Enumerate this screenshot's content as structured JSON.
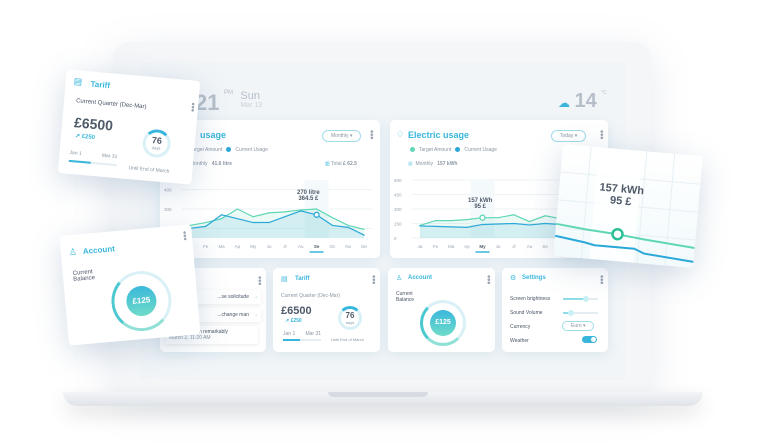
{
  "header": {
    "time": "21",
    "ampm": "PM",
    "day": "Sun",
    "date": "Mar 13",
    "temp": "14",
    "temp_unit": "°C",
    "weather_icon": "cloud-snow-icon"
  },
  "gas": {
    "title": "usage",
    "period": "Monthly",
    "legend_target": "Target Amount",
    "legend_current": "Current Usage",
    "monthly_label": "Monthly",
    "monthly_value": "41.6 litre",
    "total_label": "Total",
    "total_value": "£ 62.5",
    "tooltip_1": "270 litre",
    "tooltip_2": "364.5 £"
  },
  "electric": {
    "title": "Electric usage",
    "period": "Today",
    "legend_target": "Target Amount",
    "legend_current": "Current Usage",
    "monthly_label": "Monthly",
    "monthly_value": "157 kWh",
    "tooltip_1": "157 kWh",
    "tooltip_2": "95 £"
  },
  "chart_data": [
    {
      "type": "line",
      "title": "usage",
      "categories": [
        "Ja",
        "Fe",
        "Ma",
        "Ap",
        "My",
        "Ju",
        "Jl",
        "Au",
        "Se",
        "Oc",
        "No",
        "De"
      ],
      "ylim": [
        150,
        450
      ],
      "yticks": [
        200,
        300,
        400
      ],
      "highlight": "Se",
      "series": [
        {
          "name": "Target Amount",
          "color": "#5fd6b5",
          "values": [
            215,
            230,
            250,
            300,
            260,
            280,
            285,
            295,
            300,
            255,
            215,
            195
          ]
        },
        {
          "name": "Current Usage",
          "color": "#2ba8d8",
          "values": [
            200,
            210,
            270,
            250,
            230,
            230,
            260,
            290,
            270,
            215,
            205,
            165
          ]
        }
      ]
    },
    {
      "type": "line",
      "title": "Electric usage",
      "categories": [
        "Ja",
        "Fe",
        "Ma",
        "Ap",
        "My",
        "Ju",
        "Jl",
        "Au",
        "Se",
        "Oc",
        "No",
        "De"
      ],
      "ylim": [
        0,
        600
      ],
      "yticks": [
        0,
        150,
        300,
        450,
        600
      ],
      "highlight": "My",
      "series": [
        {
          "name": "Target Amount",
          "color": "#5fd6b5",
          "values": [
            130,
            180,
            180,
            190,
            210,
            210,
            240,
            170,
            230,
            200,
            200,
            210
          ]
        },
        {
          "name": "Current Usage",
          "color": "#2ba8d8",
          "values": [
            125,
            120,
            115,
            110,
            140,
            145,
            150,
            135,
            150,
            140,
            140,
            145
          ]
        }
      ]
    }
  ],
  "messages": {
    "items": [
      {
        "text": "...se solicitude"
      },
      {
        "text": "...change man"
      },
      {
        "text": "Indulgence ten remarkably",
        "time": "March 2, 11:20 AM"
      }
    ]
  },
  "tariff": {
    "title": "Tariff",
    "quarter": "Current Quarter (Dec-Mar)",
    "amount": "£6500",
    "delta": "↗ £250",
    "start": "Jan 1",
    "end": "Mar 31",
    "days": "76",
    "days_label": "days",
    "until": "Until End of March",
    "progress": 0.45
  },
  "account": {
    "title": "Account",
    "label1": "Current",
    "label2": "Balance",
    "balance": "£125",
    "level": 0.6
  },
  "settings": {
    "title": "Settings",
    "brightness_label": "Screen brightness",
    "brightness": 0.62,
    "volume_label": "Sound Volume",
    "volume": 0.2,
    "currency_label": "Currency",
    "currency": "Euro",
    "weather_label": "Weather",
    "weather_on": true
  },
  "floating": {
    "tooltip_1": "157 kWh",
    "tooltip_2": "95 £"
  }
}
